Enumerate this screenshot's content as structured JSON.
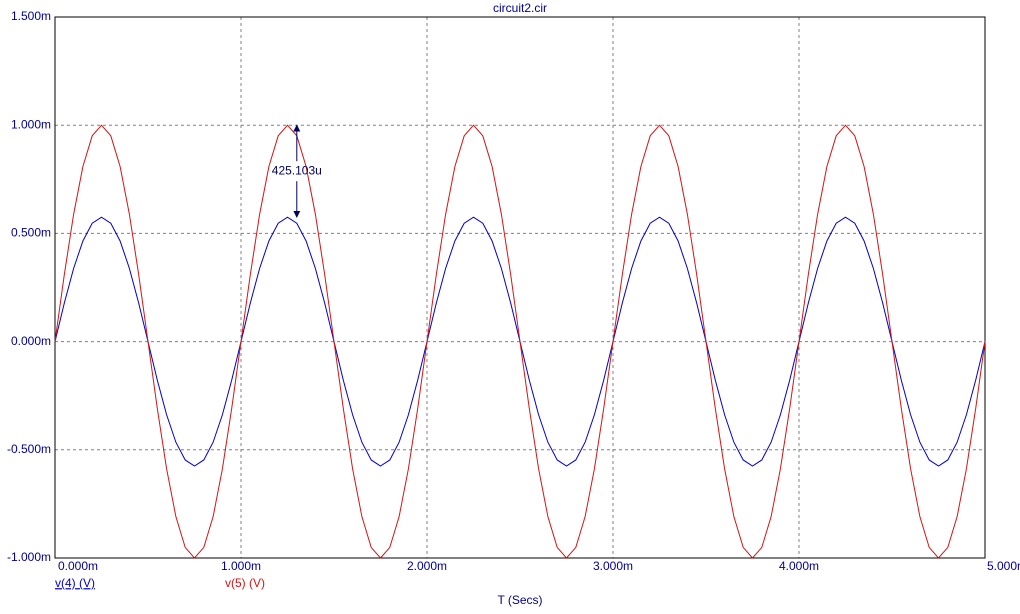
{
  "chart_data": {
    "type": "line",
    "title": "circuit2.cir",
    "xlabel": "T (Secs)",
    "x": [
      0,
      0.05,
      0.1,
      0.15,
      0.2,
      0.25,
      0.3,
      0.35,
      0.4,
      0.45,
      0.5,
      0.55,
      0.6,
      0.65,
      0.7,
      0.75,
      0.8,
      0.85,
      0.9,
      0.95,
      1,
      1.05,
      1.1,
      1.15,
      1.2,
      1.25,
      1.3,
      1.35,
      1.4,
      1.45,
      1.5,
      1.55,
      1.6,
      1.65,
      1.7,
      1.75,
      1.8,
      1.85,
      1.9,
      1.95,
      2,
      2.05,
      2.1,
      2.15,
      2.2,
      2.25,
      2.3,
      2.35,
      2.4,
      2.45,
      2.5,
      2.55,
      2.6,
      2.65,
      2.7,
      2.75,
      2.8,
      2.85,
      2.9,
      2.95,
      3,
      3.05,
      3.1,
      3.15,
      3.2,
      3.25,
      3.3,
      3.35,
      3.4,
      3.45,
      3.5,
      3.55,
      3.6,
      3.65,
      3.7,
      3.75,
      3.8,
      3.85,
      3.9,
      3.95,
      4,
      4.05,
      4.1,
      4.15,
      4.2,
      4.25,
      4.3,
      4.35,
      4.4,
      4.45,
      4.5,
      4.55,
      4.6,
      4.65,
      4.7,
      4.75,
      4.8,
      4.85,
      4.9,
      4.95,
      5
    ],
    "series": [
      {
        "name": "v(4) (V)",
        "color": "#0000c8",
        "values": [
          0,
          0.178,
          0.338,
          0.465,
          0.547,
          0.575,
          0.547,
          0.465,
          0.338,
          0.178,
          0,
          -0.178,
          -0.338,
          -0.465,
          -0.547,
          -0.575,
          -0.547,
          -0.465,
          -0.338,
          -0.178,
          0,
          0.178,
          0.338,
          0.465,
          0.547,
          0.575,
          0.547,
          0.465,
          0.338,
          0.178,
          0,
          -0.178,
          -0.338,
          -0.465,
          -0.547,
          -0.575,
          -0.547,
          -0.465,
          -0.338,
          -0.178,
          0,
          0.178,
          0.338,
          0.465,
          0.547,
          0.575,
          0.547,
          0.465,
          0.338,
          0.178,
          0,
          -0.178,
          -0.338,
          -0.465,
          -0.547,
          -0.575,
          -0.547,
          -0.465,
          -0.338,
          -0.178,
          0,
          0.178,
          0.338,
          0.465,
          0.547,
          0.575,
          0.547,
          0.465,
          0.338,
          0.178,
          0,
          -0.178,
          -0.338,
          -0.465,
          -0.547,
          -0.575,
          -0.547,
          -0.465,
          -0.338,
          -0.178,
          0,
          0.178,
          0.338,
          0.465,
          0.547,
          0.575,
          0.547,
          0.465,
          0.338,
          0.178,
          0,
          -0.178,
          -0.338,
          -0.465,
          -0.547,
          -0.575,
          -0.547,
          -0.465,
          -0.338,
          -0.178,
          0
        ]
      },
      {
        "name": "v(5) (V)",
        "color": "#d21414",
        "values": [
          0,
          0.309,
          0.588,
          0.809,
          0.951,
          1,
          0.951,
          0.809,
          0.588,
          0.309,
          0,
          -0.309,
          -0.588,
          -0.809,
          -0.951,
          -1,
          -0.951,
          -0.809,
          -0.588,
          -0.309,
          0,
          0.309,
          0.588,
          0.809,
          0.951,
          1,
          0.951,
          0.809,
          0.588,
          0.309,
          0,
          -0.309,
          -0.588,
          -0.809,
          -0.951,
          -1,
          -0.951,
          -0.809,
          -0.588,
          -0.309,
          0,
          0.309,
          0.588,
          0.809,
          0.951,
          1,
          0.951,
          0.809,
          0.588,
          0.309,
          0,
          -0.309,
          -0.588,
          -0.809,
          -0.951,
          -1,
          -0.951,
          -0.809,
          -0.588,
          -0.309,
          0,
          0.309,
          0.588,
          0.809,
          0.951,
          1,
          0.951,
          0.809,
          0.588,
          0.309,
          0,
          -0.309,
          -0.588,
          -0.809,
          -0.951,
          -1,
          -0.951,
          -0.809,
          -0.588,
          -0.309,
          0,
          0.309,
          0.588,
          0.809,
          0.951,
          1,
          0.951,
          0.809,
          0.588,
          0.309,
          0,
          -0.309,
          -0.588,
          -0.809,
          -0.951,
          -1,
          -0.951,
          -0.809,
          -0.588,
          -0.309,
          0
        ]
      }
    ],
    "xlim": [
      0,
      5
    ],
    "xticks": [
      {
        "value": 0,
        "label": "0.000m"
      },
      {
        "value": 1,
        "label": "1.000m"
      },
      {
        "value": 2,
        "label": "2.000m"
      },
      {
        "value": 3,
        "label": "3.000m"
      },
      {
        "value": 4,
        "label": "4.000m"
      },
      {
        "value": 5,
        "label": "5.000m"
      }
    ],
    "ylim": [
      -1,
      1.5
    ],
    "yticks": [
      {
        "value": -1,
        "label": "-1.000m"
      },
      {
        "value": -0.5,
        "label": "-0.500m"
      },
      {
        "value": 0,
        "label": "0.000m"
      },
      {
        "value": 0.5,
        "label": "0.500m"
      },
      {
        "value": 1,
        "label": "1.000m"
      },
      {
        "value": 1.5,
        "label": "1.500m"
      }
    ],
    "grid": true,
    "annotations": [
      {
        "text": "425.103u",
        "x": 1.3,
        "y1": 0.575,
        "y2": 1
      }
    ]
  }
}
